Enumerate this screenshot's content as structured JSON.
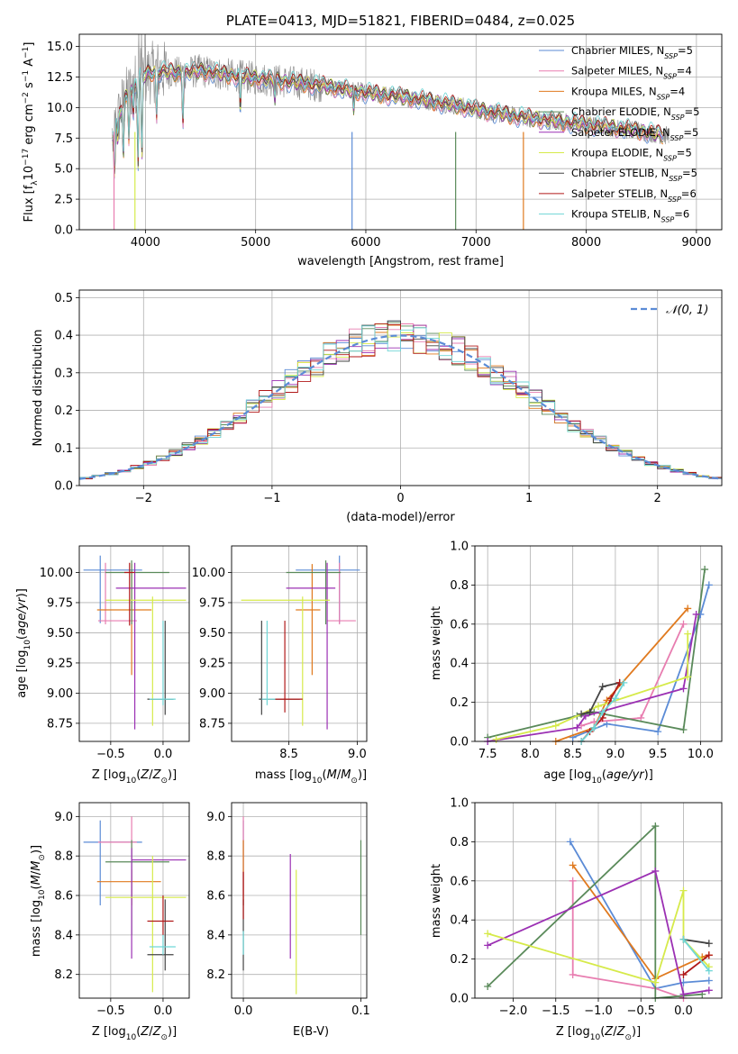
{
  "series": [
    {
      "name": "Chabrier MILES",
      "n_ssp": "5",
      "color": "#5b8bd6"
    },
    {
      "name": "Salpeter MILES",
      "n_ssp": "4",
      "color": "#e87db0"
    },
    {
      "name": "Kroupa MILES",
      "n_ssp": "4",
      "color": "#e07a1f"
    },
    {
      "name": "Chabrier ELODIE",
      "n_ssp": "5",
      "color": "#5a8a5a"
    },
    {
      "name": "Salpeter ELODIE",
      "n_ssp": "5",
      "color": "#9b30b3"
    },
    {
      "name": "Kroupa ELODIE",
      "n_ssp": "5",
      "color": "#d6ea4a"
    },
    {
      "name": "Chabrier STELIB",
      "n_ssp": "5",
      "color": "#444444"
    },
    {
      "name": "Salpeter STELIB",
      "n_ssp": "6",
      "color": "#b01818"
    },
    {
      "name": "Kroupa STELIB",
      "n_ssp": "6",
      "color": "#6fd6d6"
    }
  ],
  "colors": {
    "data_spectrum": "#888888",
    "gaussian": "#5b8bd6",
    "grid": "#b0b0b0"
  },
  "chart_data": [
    {
      "id": "spectrum",
      "type": "line",
      "title": "PLATE=0413, MJD=51821, FIBERID=0484, z=0.025",
      "xlabel": "wavelength [Angstrom, rest frame]",
      "ylabel": "Flux [f_λ10^-17 erg cm^-2 s^-1 A^-1]",
      "xlim": [
        3400,
        9230
      ],
      "ylim": [
        0,
        16
      ],
      "xticks": [
        4000,
        5000,
        6000,
        7000,
        8000,
        9000
      ],
      "yticks": [
        0.0,
        2.5,
        5.0,
        7.5,
        10.0,
        12.5,
        15.0
      ],
      "legend": "top-right",
      "continuum": {
        "x": [
          3700,
          3800,
          3950,
          4100,
          4300,
          4500,
          4800,
          5200,
          5600,
          6000,
          6400,
          6800,
          7200,
          7600,
          8000,
          8400,
          8800
        ],
        "y": [
          7.5,
          10.5,
          12.5,
          13.0,
          12.8,
          13.0,
          12.6,
          12.2,
          11.8,
          11.2,
          10.8,
          10.2,
          9.5,
          9.0,
          8.6,
          8.2,
          7.6
        ]
      }
    },
    {
      "id": "residuals",
      "type": "line",
      "xlabel": "(data-model)/error",
      "ylabel": "Normed distribution",
      "xlim": [
        -2.5,
        2.5
      ],
      "ylim": [
        0,
        0.52
      ],
      "xticks": [
        -2,
        -1,
        0,
        1,
        2
      ],
      "yticks": [
        0.0,
        0.1,
        0.2,
        0.3,
        0.4,
        0.5
      ],
      "legend": "top-right",
      "gaussian_label": "𝒩(0, 1)",
      "bin_width": 0.1
    },
    {
      "id": "age_vs_Z",
      "type": "scatter",
      "xlabel": "Z [log10(Z/Z⊙)]",
      "ylabel": "age [log10(age/yr)]",
      "xlim": [
        -0.8,
        0.25
      ],
      "ylim": [
        8.6,
        10.22
      ],
      "xticks": [
        -0.5,
        0.0
      ],
      "yticks": [
        8.75,
        9.0,
        9.25,
        9.5,
        9.75,
        10.0
      ],
      "points": [
        {
          "s": 0,
          "x": -0.6,
          "y": 10.02,
          "xe": [
            -0.76,
            -0.2
          ],
          "ye": [
            9.58,
            10.14
          ]
        },
        {
          "s": 1,
          "x": -0.55,
          "y": 9.6,
          "xe": [
            -0.62,
            -0.25
          ],
          "ye": [
            9.57,
            10.08
          ]
        },
        {
          "s": 2,
          "x": -0.3,
          "y": 9.69,
          "xe": [
            -0.63,
            -0.11
          ],
          "ye": [
            9.15,
            10.07
          ]
        },
        {
          "s": 3,
          "x": -0.3,
          "y": 10.0,
          "xe": [
            -0.55,
            0.06
          ],
          "ye": [
            9.57,
            10.1
          ]
        },
        {
          "s": 4,
          "x": -0.27,
          "y": 9.87,
          "xe": [
            -0.45,
            0.22
          ],
          "ye": [
            8.7,
            10.08
          ]
        },
        {
          "s": 5,
          "x": -0.1,
          "y": 9.77,
          "xe": [
            -0.55,
            0.22
          ],
          "ye": [
            8.73,
            9.8
          ]
        },
        {
          "s": 6,
          "x": 0.02,
          "y": 8.95,
          "xe": [
            -0.15,
            0.1
          ],
          "ye": [
            8.82,
            9.6
          ]
        },
        {
          "s": 7,
          "x": -0.32,
          "y": 10.0,
          "xe": [
            -0.37,
            -0.27
          ],
          "ye": [
            9.56,
            10.08
          ]
        },
        {
          "s": 8,
          "x": 0.0,
          "y": 8.95,
          "xe": [
            -0.13,
            0.12
          ],
          "ye": [
            8.9,
            9.6
          ]
        }
      ]
    },
    {
      "id": "age_vs_mass",
      "type": "scatter",
      "xlabel": "mass [log10(M/M⊙)]",
      "ylabel": "",
      "xlim": [
        8.08,
        9.07
      ],
      "ylim": [
        8.6,
        10.22
      ],
      "xticks": [
        8.5,
        9.0
      ],
      "yticks": [
        8.75,
        9.0,
        9.25,
        9.5,
        9.75,
        10.0
      ],
      "points": [
        {
          "s": 0,
          "x": 8.87,
          "y": 10.02,
          "xe": [
            8.55,
            9.02
          ],
          "ye": [
            9.58,
            10.14
          ]
        },
        {
          "s": 1,
          "x": 8.87,
          "y": 9.6,
          "xe": [
            8.78,
            8.99
          ],
          "ye": [
            9.57,
            10.08
          ]
        },
        {
          "s": 2,
          "x": 8.67,
          "y": 9.69,
          "xe": [
            8.55,
            8.73
          ],
          "ye": [
            9.15,
            10.07
          ]
        },
        {
          "s": 3,
          "x": 8.77,
          "y": 10.0,
          "xe": [
            8.48,
            8.88
          ],
          "ye": [
            9.57,
            10.1
          ]
        },
        {
          "s": 4,
          "x": 8.78,
          "y": 9.87,
          "xe": [
            8.48,
            8.84
          ],
          "ye": [
            8.7,
            10.08
          ]
        },
        {
          "s": 5,
          "x": 8.6,
          "y": 9.77,
          "xe": [
            8.15,
            8.8
          ],
          "ye": [
            8.73,
            9.8
          ]
        },
        {
          "s": 6,
          "x": 8.3,
          "y": 8.95,
          "xe": [
            8.28,
            8.58
          ],
          "ye": [
            8.82,
            9.6
          ]
        },
        {
          "s": 7,
          "x": 8.47,
          "y": 8.95,
          "xe": [
            8.4,
            8.6
          ],
          "ye": [
            8.84,
            9.6
          ]
        },
        {
          "s": 8,
          "x": 8.34,
          "y": 8.95,
          "xe": [
            8.3,
            8.4
          ],
          "ye": [
            8.9,
            9.6
          ]
        }
      ]
    },
    {
      "id": "mass_weight_vs_age",
      "type": "line",
      "xlabel": "age [log10(age/yr)]",
      "ylabel": "mass weight",
      "xlim": [
        7.35,
        10.25
      ],
      "ylim": [
        0,
        1
      ],
      "xticks": [
        7.5,
        8.0,
        8.5,
        9.0,
        9.5,
        10.0
      ],
      "yticks": [
        0.0,
        0.2,
        0.4,
        0.6,
        0.8,
        1.0
      ],
      "series_points": [
        {
          "s": 0,
          "x": [
            8.5,
            8.9,
            9.5,
            10.0,
            10.1
          ],
          "y": [
            0.02,
            0.09,
            0.05,
            0.65,
            0.8
          ]
        },
        {
          "s": 1,
          "x": [
            8.6,
            8.75,
            9.3,
            9.8
          ],
          "y": [
            0.08,
            0.1,
            0.12,
            0.6
          ]
        },
        {
          "s": 2,
          "x": [
            8.3,
            8.75,
            8.9,
            9.85
          ],
          "y": [
            0.0,
            0.07,
            0.21,
            0.68
          ]
        },
        {
          "s": 3,
          "x": [
            7.5,
            8.55,
            8.75,
            9.8,
            10.05
          ],
          "y": [
            0.02,
            0.13,
            0.15,
            0.06,
            0.88
          ]
        },
        {
          "s": 4,
          "x": [
            7.5,
            8.55,
            8.65,
            9.8,
            9.95
          ],
          "y": [
            0.0,
            0.07,
            0.13,
            0.27,
            0.65
          ]
        },
        {
          "s": 5,
          "x": [
            7.6,
            8.3,
            8.8,
            9.85,
            9.85
          ],
          "y": [
            0.01,
            0.08,
            0.18,
            0.33,
            0.55
          ]
        },
        {
          "s": 6,
          "x": [
            8.6,
            8.7,
            8.85,
            9.05
          ],
          "y": [
            0.14,
            0.15,
            0.28,
            0.3
          ]
        },
        {
          "s": 7,
          "x": [
            8.6,
            8.7,
            8.85,
            8.95,
            9.05
          ],
          "y": [
            0.0,
            0.05,
            0.12,
            0.22,
            0.3
          ]
        },
        {
          "s": 8,
          "x": [
            8.6,
            8.75,
            8.85,
            9.0,
            9.1
          ],
          "y": [
            0.0,
            0.07,
            0.15,
            0.22,
            0.3
          ]
        }
      ]
    },
    {
      "id": "mass_vs_Z",
      "type": "scatter",
      "xlabel": "Z [log10(Z/Z⊙)]",
      "ylabel": "mass [log10(M/M⊙)]",
      "xlim": [
        -0.8,
        0.25
      ],
      "ylim": [
        8.08,
        9.07
      ],
      "xticks": [
        -0.5,
        0.0
      ],
      "yticks": [
        8.2,
        8.4,
        8.6,
        8.8,
        9.0
      ],
      "points": [
        {
          "s": 0,
          "x": -0.6,
          "y": 8.87,
          "xe": [
            -0.76,
            -0.2
          ],
          "ye": [
            8.55,
            8.98
          ]
        },
        {
          "s": 1,
          "x": -0.3,
          "y": 8.87,
          "xe": [
            -0.62,
            -0.25
          ],
          "ye": [
            8.78,
            9.0
          ]
        },
        {
          "s": 2,
          "x": -0.3,
          "y": 8.67,
          "xe": [
            -0.63,
            -0.02
          ],
          "ye": [
            8.55,
            8.73
          ]
        },
        {
          "s": 3,
          "x": -0.3,
          "y": 8.77,
          "xe": [
            -0.55,
            0.06
          ],
          "ye": [
            8.4,
            8.88
          ]
        },
        {
          "s": 4,
          "x": -0.3,
          "y": 8.78,
          "xe": [
            -0.3,
            0.22
          ],
          "ye": [
            8.28,
            8.84
          ]
        },
        {
          "s": 5,
          "x": -0.1,
          "y": 8.59,
          "xe": [
            -0.55,
            0.22
          ],
          "ye": [
            8.11,
            8.8
          ]
        },
        {
          "s": 6,
          "x": 0.02,
          "y": 8.3,
          "xe": [
            -0.15,
            0.1
          ],
          "ye": [
            8.22,
            8.58
          ]
        },
        {
          "s": 7,
          "x": 0.0,
          "y": 8.47,
          "xe": [
            -0.15,
            0.1
          ],
          "ye": [
            8.4,
            8.6
          ]
        },
        {
          "s": 8,
          "x": 0.0,
          "y": 8.34,
          "xe": [
            -0.13,
            0.12
          ],
          "ye": [
            8.3,
            8.4
          ]
        }
      ]
    },
    {
      "id": "mass_vs_ebv",
      "type": "scatter",
      "xlabel": "E(B-V)",
      "ylabel": "",
      "xlim": [
        -0.01,
        0.105
      ],
      "ylim": [
        8.08,
        9.07
      ],
      "xticks": [
        0.0,
        0.1
      ],
      "yticks": [
        8.2,
        8.4,
        8.6,
        8.8,
        9.0
      ],
      "points": [
        {
          "s": 0,
          "x": 0.0,
          "y": 8.87,
          "ye": [
            8.55,
            8.98
          ]
        },
        {
          "s": 1,
          "x": 0.0,
          "y": 8.87,
          "ye": [
            8.6,
            9.0
          ]
        },
        {
          "s": 2,
          "x": 0.0,
          "y": 8.67,
          "ye": [
            8.55,
            8.88
          ]
        },
        {
          "s": 3,
          "x": 0.1,
          "y": 8.6,
          "ye": [
            8.4,
            8.88
          ]
        },
        {
          "s": 4,
          "x": 0.04,
          "y": 8.55,
          "ye": [
            8.28,
            8.81
          ]
        },
        {
          "s": 5,
          "x": 0.045,
          "y": 8.4,
          "ye": [
            8.1,
            8.73
          ]
        },
        {
          "s": 6,
          "x": 0.0,
          "y": 8.3,
          "ye": [
            8.22,
            8.58
          ]
        },
        {
          "s": 7,
          "x": 0.0,
          "y": 8.6,
          "ye": [
            8.48,
            8.72
          ]
        },
        {
          "s": 8,
          "x": 0.0,
          "y": 8.34,
          "ye": [
            8.3,
            8.42
          ]
        }
      ]
    },
    {
      "id": "mass_weight_vs_Z",
      "type": "line",
      "xlabel": "Z [log10(Z/Z⊙)]",
      "ylabel": "mass weight",
      "xlim": [
        -2.45,
        0.45
      ],
      "ylim": [
        0,
        1
      ],
      "xticks": [
        -2.0,
        -1.5,
        -1.0,
        -0.5,
        0.0
      ],
      "yticks": [
        0.0,
        0.2,
        0.4,
        0.6,
        0.8,
        1.0
      ],
      "series_points": [
        {
          "s": 0,
          "x": [
            -1.33,
            -0.33,
            0.0,
            0.3
          ],
          "y": [
            0.8,
            0.05,
            0.08,
            0.09
          ]
        },
        {
          "s": 1,
          "x": [
            -1.3,
            -1.3,
            -0.33,
            0.0
          ],
          "y": [
            0.6,
            0.12,
            0.05,
            0.0
          ]
        },
        {
          "s": 2,
          "x": [
            -1.3,
            -0.33,
            0.22,
            0.3
          ],
          "y": [
            0.68,
            0.1,
            0.21,
            0.22
          ]
        },
        {
          "s": 3,
          "x": [
            -2.3,
            -0.33,
            -0.33,
            0.22
          ],
          "y": [
            0.06,
            0.88,
            0.0,
            0.02
          ]
        },
        {
          "s": 4,
          "x": [
            -2.3,
            -0.33,
            0.0,
            0.3
          ],
          "y": [
            0.27,
            0.65,
            0.02,
            0.04
          ]
        },
        {
          "s": 5,
          "x": [
            -2.3,
            -0.33,
            0.0,
            0.0,
            0.3
          ],
          "y": [
            0.33,
            0.08,
            0.55,
            0.3,
            0.16
          ]
        },
        {
          "s": 6,
          "x": [
            0.0,
            0.3
          ],
          "y": [
            0.3,
            0.28
          ]
        },
        {
          "s": 7,
          "x": [
            0.0,
            0.3
          ],
          "y": [
            0.12,
            0.22
          ]
        },
        {
          "s": 8,
          "x": [
            0.0,
            0.3
          ],
          "y": [
            0.3,
            0.14
          ]
        }
      ]
    }
  ]
}
